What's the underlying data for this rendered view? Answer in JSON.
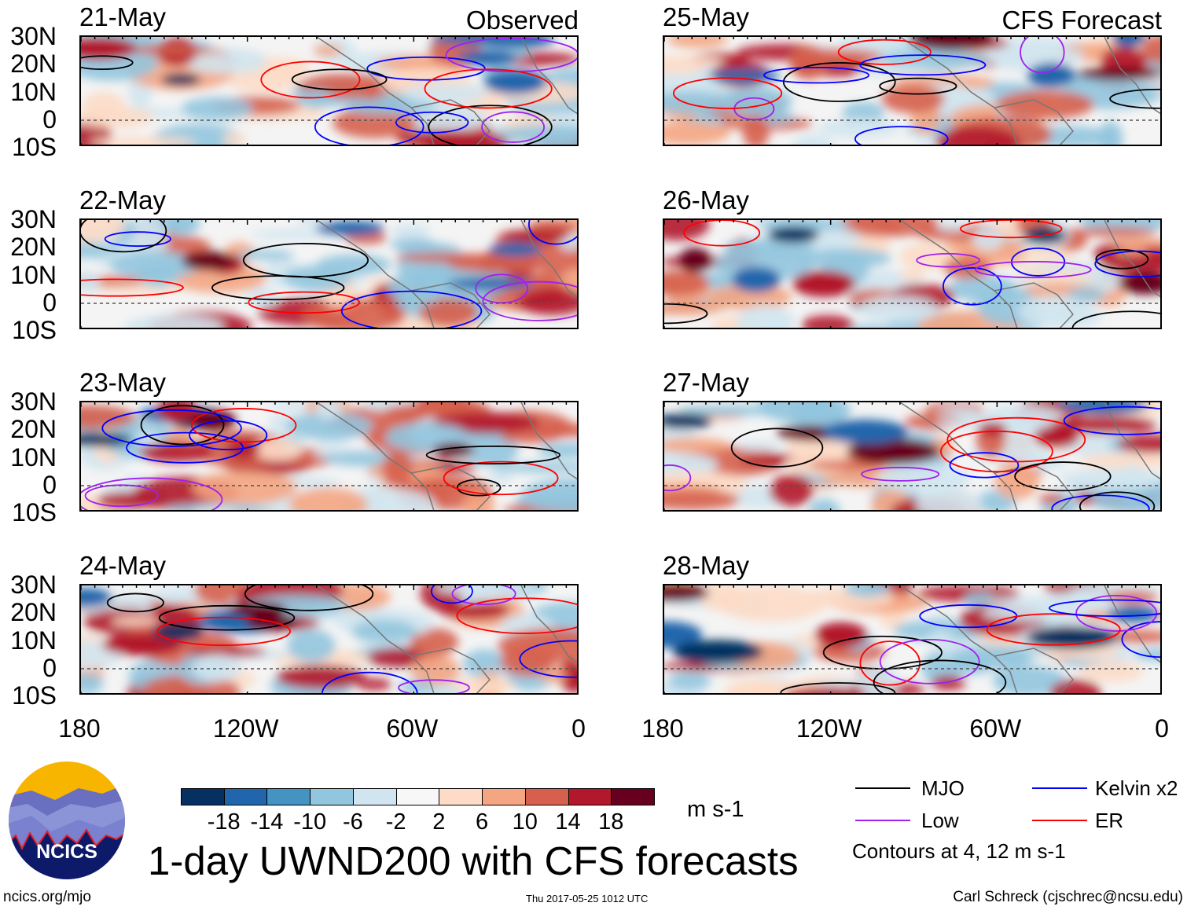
{
  "panels": {
    "left": [
      {
        "date": "21-May"
      },
      {
        "date": "22-May"
      },
      {
        "date": "23-May"
      },
      {
        "date": "24-May"
      }
    ],
    "right": [
      {
        "date": "25-May"
      },
      {
        "date": "26-May"
      },
      {
        "date": "27-May"
      },
      {
        "date": "28-May"
      }
    ],
    "left_header": "Observed",
    "right_header": "CFS Forecast"
  },
  "lat_labels": [
    "30N",
    "20N",
    "10N",
    "0",
    "10S"
  ],
  "lon_labels": [
    "180",
    "120W",
    "60W",
    "0"
  ],
  "colorbar": {
    "colors": [
      "#053061",
      "#2166ac",
      "#4393c3",
      "#92c5de",
      "#d1e5f0",
      "#f7f7f7",
      "#fddbc7",
      "#f4a582",
      "#d6604d",
      "#b2182b",
      "#67001f"
    ],
    "labels": [
      "-18",
      "-14",
      "-10",
      "-6",
      "-2",
      "2",
      "6",
      "10",
      "14",
      "18"
    ],
    "units": "m s-1"
  },
  "legend": {
    "items": [
      {
        "label": "MJO",
        "color": "#000000"
      },
      {
        "label": "Kelvin x2",
        "color": "#0000ff"
      },
      {
        "label": "Low",
        "color": "#a020f0"
      },
      {
        "label": "ER",
        "color": "#ff0000"
      }
    ],
    "note": "Contours at 4, 12 m s-1"
  },
  "title": "1-day UWND200 with CFS forecasts",
  "logo_text": "NCICS",
  "footer": {
    "left": "ncics.org/mjo",
    "center": "Thu 2017-05-25 1012 UTC",
    "right": "Carl Schreck (cjschrec@ncsu.edu)"
  }
}
